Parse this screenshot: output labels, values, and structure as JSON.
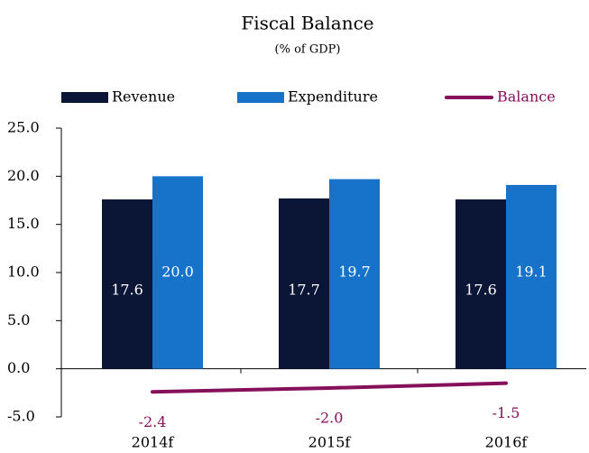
{
  "chart_data": {
    "type": "bar",
    "title": "Fiscal Balance",
    "subtitle": "(% of GDP)",
    "categories": [
      "2014f",
      "2015f",
      "2016f"
    ],
    "series": [
      {
        "name": "Revenue",
        "color": "#0b1637",
        "values": [
          17.6,
          17.7,
          17.6
        ]
      },
      {
        "name": "Expenditure",
        "color": "#1673c9",
        "values": [
          20.0,
          19.7,
          19.1
        ],
        "value_labels": [
          "20.0",
          "19.7",
          "19.1"
        ]
      },
      {
        "name": "Balance",
        "type": "line",
        "color": "#86105a",
        "values": [
          -2.4,
          -2.0,
          -1.5
        ],
        "value_labels": [
          "-2.4",
          "-2.0",
          "-1.5"
        ]
      }
    ],
    "ylim": [
      -5,
      25
    ],
    "yticks": [
      {
        "value": -5,
        "label": "-5.0"
      },
      {
        "value": 0,
        "label": "0.0"
      },
      {
        "value": 5,
        "label": "5.0"
      },
      {
        "value": 10,
        "label": "10.0"
      },
      {
        "value": 15,
        "label": "15.0"
      },
      {
        "value": 20,
        "label": "20.0"
      },
      {
        "value": 25,
        "label": "25.0"
      }
    ],
    "legend": "top",
    "grid": false
  }
}
